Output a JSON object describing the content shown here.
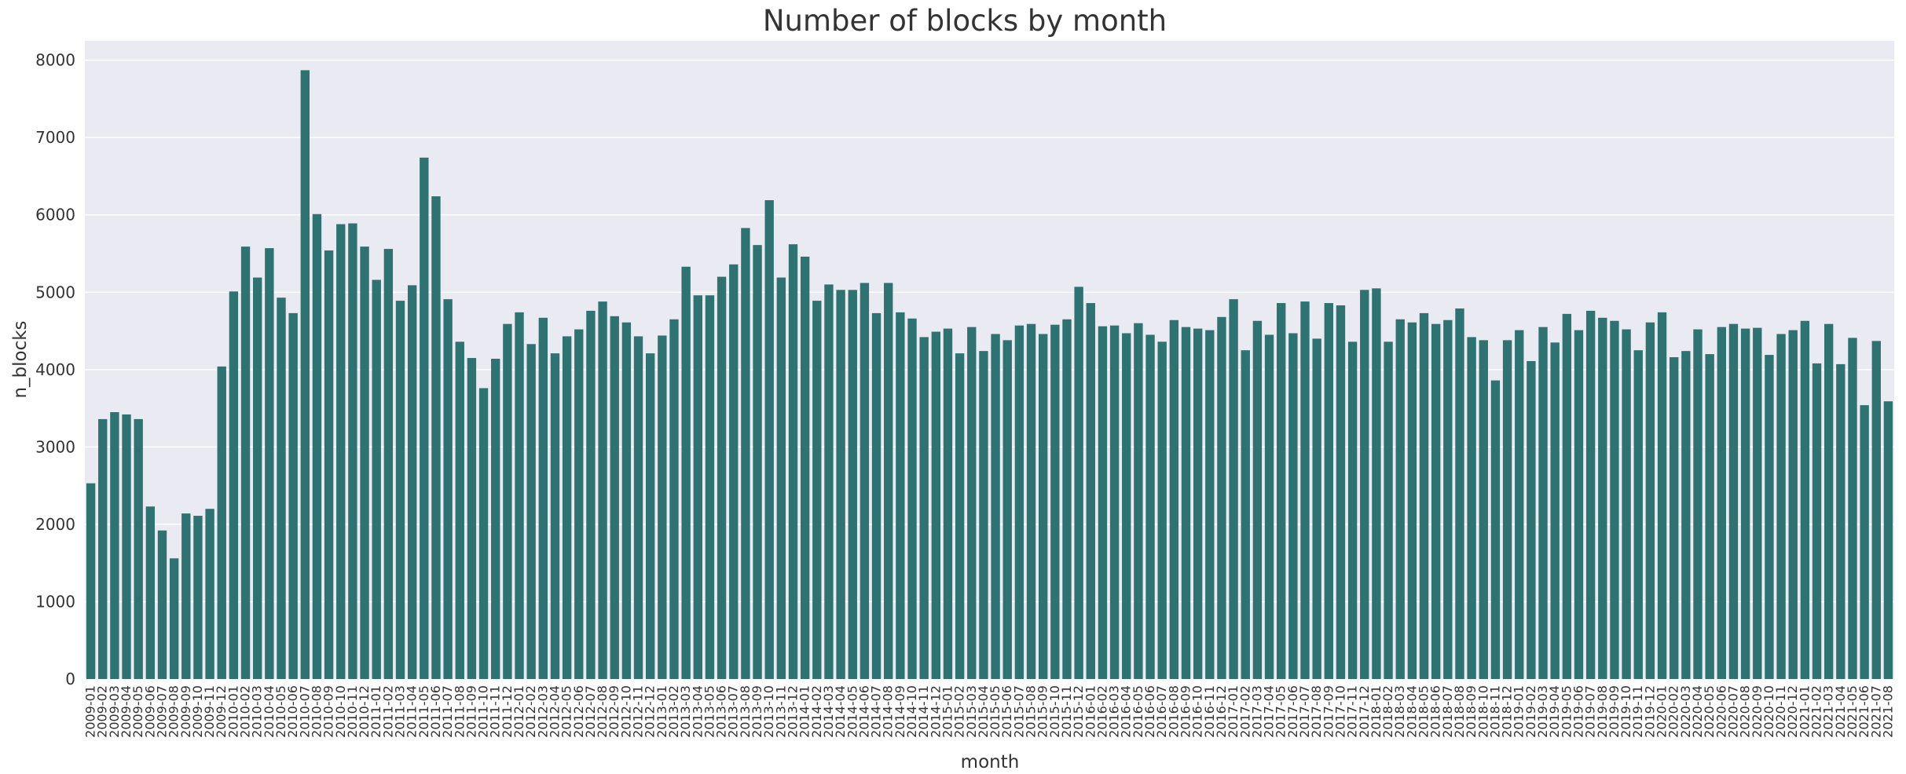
{
  "chart_data": {
    "type": "bar",
    "title": "Number of blocks by month",
    "xlabel": "month",
    "ylabel": "n_blocks",
    "ylim": [
      0,
      8250
    ],
    "yticks": [
      0,
      1000,
      2000,
      3000,
      4000,
      5000,
      6000,
      7000,
      8000
    ],
    "grid": true,
    "bar_color": "#2e7272",
    "background_color": "#eaeaf2",
    "grid_color": "#ffffff",
    "categories": [
      "2009-01",
      "2009-02",
      "2009-03",
      "2009-04",
      "2009-05",
      "2009-06",
      "2009-07",
      "2009-08",
      "2009-09",
      "2009-10",
      "2009-11",
      "2009-12",
      "2010-01",
      "2010-02",
      "2010-03",
      "2010-04",
      "2010-05",
      "2010-06",
      "2010-07",
      "2010-08",
      "2010-09",
      "2010-10",
      "2010-11",
      "2010-12",
      "2011-01",
      "2011-02",
      "2011-03",
      "2011-04",
      "2011-05",
      "2011-06",
      "2011-07",
      "2011-08",
      "2011-09",
      "2011-10",
      "2011-11",
      "2011-12",
      "2012-01",
      "2012-02",
      "2012-03",
      "2012-04",
      "2012-05",
      "2012-06",
      "2012-07",
      "2012-08",
      "2012-09",
      "2012-10",
      "2012-11",
      "2012-12",
      "2013-01",
      "2013-02",
      "2013-03",
      "2013-04",
      "2013-05",
      "2013-06",
      "2013-07",
      "2013-08",
      "2013-09",
      "2013-10",
      "2013-11",
      "2013-12",
      "2014-01",
      "2014-02",
      "2014-03",
      "2014-04",
      "2014-05",
      "2014-06",
      "2014-07",
      "2014-08",
      "2014-09",
      "2014-10",
      "2014-11",
      "2014-12",
      "2015-01",
      "2015-02",
      "2015-03",
      "2015-04",
      "2015-05",
      "2015-06",
      "2015-07",
      "2015-08",
      "2015-09",
      "2015-10",
      "2015-11",
      "2015-12",
      "2016-01",
      "2016-02",
      "2016-03",
      "2016-04",
      "2016-05",
      "2016-06",
      "2016-07",
      "2016-08",
      "2016-09",
      "2016-10",
      "2016-11",
      "2016-12",
      "2017-01",
      "2017-02",
      "2017-03",
      "2017-04",
      "2017-05",
      "2017-06",
      "2017-07",
      "2017-08",
      "2017-09",
      "2017-10",
      "2017-11",
      "2017-12",
      "2018-01",
      "2018-02",
      "2018-03",
      "2018-04",
      "2018-05",
      "2018-06",
      "2018-07",
      "2018-08",
      "2018-09",
      "2018-10",
      "2018-11",
      "2018-12",
      "2019-01",
      "2019-02",
      "2019-03",
      "2019-04",
      "2019-05",
      "2019-06",
      "2019-07",
      "2019-08",
      "2019-09",
      "2019-10",
      "2019-11",
      "2019-12",
      "2020-01",
      "2020-02",
      "2020-03",
      "2020-04",
      "2020-05",
      "2020-06",
      "2020-07",
      "2020-08",
      "2020-09",
      "2020-10",
      "2020-11",
      "2020-12",
      "2021-01",
      "2021-02",
      "2021-03",
      "2021-04",
      "2021-05",
      "2021-06",
      "2021-07",
      "2021-08"
    ],
    "values": [
      2530,
      3360,
      3450,
      3420,
      3360,
      2230,
      1920,
      1560,
      2140,
      2110,
      2200,
      4040,
      5010,
      5590,
      5190,
      5570,
      4930,
      4730,
      7870,
      6010,
      5540,
      5880,
      5890,
      5590,
      5160,
      5560,
      4890,
      5090,
      6740,
      6240,
      4910,
      4360,
      4150,
      3760,
      4140,
      4590,
      4740,
      4330,
      4670,
      4210,
      4430,
      4520,
      4760,
      4880,
      4690,
      4610,
      4430,
      4210,
      4440,
      4650,
      5330,
      4960,
      4960,
      5200,
      5360,
      5830,
      5610,
      6190,
      5190,
      5620,
      5460,
      4890,
      5100,
      5030,
      5030,
      5120,
      4730,
      5120,
      4740,
      4660,
      4420,
      4490,
      4530,
      4210,
      4550,
      4240,
      4460,
      4380,
      4570,
      4590,
      4460,
      4580,
      4650,
      5070,
      4860,
      4560,
      4570,
      4470,
      4600,
      4450,
      4360,
      4640,
      4550,
      4530,
      4510,
      4680,
      4910,
      4250,
      4630,
      4450,
      4860,
      4470,
      4880,
      4400,
      4860,
      4830,
      4360,
      5030,
      5050,
      4360,
      4650,
      4610,
      4730,
      4590,
      4640,
      4790,
      4420,
      4380,
      3860,
      4380,
      4510,
      4110,
      4550,
      4350,
      4720,
      4510,
      4760,
      4670,
      4630,
      4520,
      4250,
      4610,
      4740,
      4160,
      4240,
      4520,
      4200,
      4550,
      4590,
      4530,
      4540,
      4190,
      4460,
      4510,
      4630,
      4080,
      4590,
      4070,
      4410,
      3540,
      4370,
      3590
    ]
  }
}
